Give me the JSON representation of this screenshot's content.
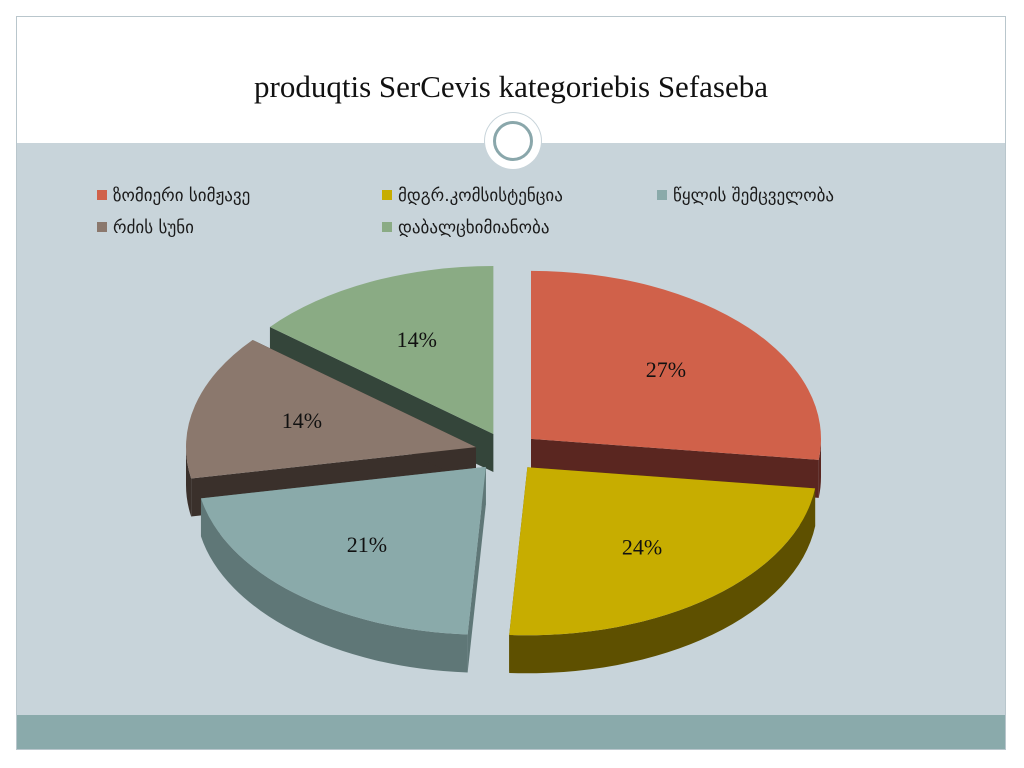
{
  "slide": {
    "title": "produqtis SerCevis  kategoriebis Sefaseba"
  },
  "chart_data": {
    "type": "pie",
    "title": "",
    "legend_position": "top",
    "slices": [
      {
        "name": "ზომიერი სიმჟავე",
        "value": 27,
        "label": "27%",
        "color": "#d0614a",
        "side_color": "#5a2620"
      },
      {
        "name": "მდგრ.კომსისტენცია",
        "value": 24,
        "label": "24%",
        "color": "#c7ad00",
        "side_color": "#5e5000"
      },
      {
        "name": "წყლის შემცველობა",
        "value": 21,
        "label": "21%",
        "color": "#8aaaaa",
        "side_color": "#5f7777"
      },
      {
        "name": "რძის სუნი",
        "value": 14,
        "label": "14%",
        "color": "#8b786d",
        "side_color": "#3a302b"
      },
      {
        "name": "დაბალცხიმიანობა",
        "value": 14,
        "label": "14%",
        "color": "#8aab84",
        "side_color": "#34453a"
      }
    ]
  }
}
